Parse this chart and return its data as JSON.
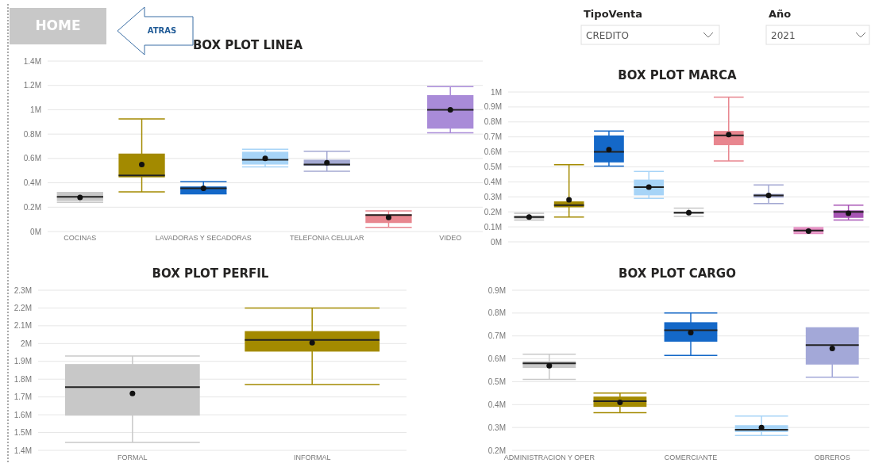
{
  "chart_data": [
    {
      "type": "box",
      "title": "BOX PLOT LINEA",
      "categories": [
        "COCINAS",
        null,
        "LAVADORAS Y SECADORAS",
        null,
        "TELEFONIA CELULAR",
        null,
        "VIDEO"
      ],
      "colors": [
        "#c8c8c8",
        "#a38a00",
        "#1468c8",
        "#a7d4f7",
        "#a3a8d2",
        "#e8868f",
        "#a98bd8"
      ],
      "boxes": [
        {
          "low": 0.24,
          "q1": 0.25,
          "median": 0.285,
          "q3": 0.32,
          "high": 0.32,
          "mean": 0.28
        },
        {
          "low": 0.325,
          "q1": 0.445,
          "median": 0.46,
          "q3": 0.64,
          "high": 0.925,
          "mean": 0.55
        },
        {
          "low": 0.31,
          "q1": 0.31,
          "median": 0.355,
          "q3": 0.37,
          "high": 0.41,
          "mean": 0.355
        },
        {
          "low": 0.53,
          "q1": 0.55,
          "median": 0.59,
          "q3": 0.655,
          "high": 0.675,
          "mean": 0.6
        },
        {
          "low": 0.495,
          "q1": 0.54,
          "median": 0.55,
          "q3": 0.59,
          "high": 0.66,
          "mean": 0.565
        },
        {
          "low": 0.035,
          "q1": 0.07,
          "median": 0.135,
          "q3": 0.14,
          "high": 0.17,
          "mean": 0.115
        },
        {
          "low": 0.81,
          "q1": 0.845,
          "median": 1.0,
          "q3": 1.12,
          "high": 1.19,
          "mean": 1.0
        }
      ],
      "ylim": [
        0,
        1.4
      ],
      "yticks": [
        {
          "value": 0,
          "label": "0M"
        },
        {
          "value": 0.2,
          "label": "0.2M"
        },
        {
          "value": 0.4,
          "label": "0.4M"
        },
        {
          "value": 0.6,
          "label": "0.6M"
        },
        {
          "value": 0.8,
          "label": "0.8M"
        },
        {
          "value": 1,
          "label": "1M"
        },
        {
          "value": 1.2,
          "label": "1.2M"
        },
        {
          "value": 1.4,
          "label": "1.4M"
        }
      ],
      "grid": "y"
    },
    {
      "type": "box",
      "title": "BOX PLOT MARCA",
      "categories": [
        null,
        null,
        null,
        null,
        null,
        null,
        null,
        null,
        null
      ],
      "colors": [
        "#bdbdbd",
        "#a38a00",
        "#1468c8",
        "#a7d4f7",
        "#c8c8c8",
        "#e8868f",
        "#a3a8d2",
        "#e48ac0",
        "#a855b5"
      ],
      "boxes": [
        {
          "low": 0.145,
          "q1": 0.155,
          "median": 0.165,
          "q3": 0.175,
          "high": 0.19,
          "mean": 0.165
        },
        {
          "low": 0.165,
          "q1": 0.23,
          "median": 0.245,
          "q3": 0.27,
          "high": 0.515,
          "mean": 0.28
        },
        {
          "low": 0.505,
          "q1": 0.53,
          "median": 0.6,
          "q3": 0.71,
          "high": 0.74,
          "mean": 0.615
        },
        {
          "low": 0.29,
          "q1": 0.31,
          "median": 0.365,
          "q3": 0.415,
          "high": 0.47,
          "mean": 0.365
        },
        {
          "low": 0.17,
          "q1": 0.185,
          "median": 0.195,
          "q3": 0.2,
          "high": 0.225,
          "mean": 0.195
        },
        {
          "low": 0.54,
          "q1": 0.645,
          "median": 0.71,
          "q3": 0.74,
          "high": 0.965,
          "mean": 0.715
        },
        {
          "low": 0.255,
          "q1": 0.295,
          "median": 0.31,
          "q3": 0.32,
          "high": 0.38,
          "mean": 0.31
        },
        {
          "low": 0.055,
          "q1": 0.06,
          "median": 0.075,
          "q3": 0.09,
          "high": 0.095,
          "mean": 0.072
        },
        {
          "low": 0.145,
          "q1": 0.16,
          "median": 0.2,
          "q3": 0.21,
          "high": 0.245,
          "mean": 0.19
        }
      ],
      "ylim": [
        0,
        1
      ],
      "yticks": [
        {
          "value": 0,
          "label": "0M"
        },
        {
          "value": 0.1,
          "label": "0.1M"
        },
        {
          "value": 0.2,
          "label": "0.2M"
        },
        {
          "value": 0.3,
          "label": "0.3M"
        },
        {
          "value": 0.4,
          "label": "0.4M"
        },
        {
          "value": 0.5,
          "label": "0.5M"
        },
        {
          "value": 0.6,
          "label": "0.6M"
        },
        {
          "value": 0.7,
          "label": "0.7M"
        },
        {
          "value": 0.8,
          "label": "0.8M"
        },
        {
          "value": 0.9,
          "label": "0.9M"
        },
        {
          "value": 1,
          "label": "1M"
        }
      ],
      "grid": "y"
    },
    {
      "type": "box",
      "title": "BOX PLOT PERFIL",
      "categories": [
        "FORMAL",
        "INFORMAL"
      ],
      "colors": [
        "#c8c8c8",
        "#a38a00"
      ],
      "boxes": [
        {
          "low": 1.445,
          "q1": 1.595,
          "median": 1.755,
          "q3": 1.885,
          "high": 1.93,
          "mean": 1.72
        },
        {
          "low": 1.77,
          "q1": 1.955,
          "median": 2.02,
          "q3": 2.07,
          "high": 2.2,
          "mean": 2.005
        }
      ],
      "ylim": [
        1.4,
        2.3
      ],
      "yticks": [
        {
          "value": 1.4,
          "label": "1.4M"
        },
        {
          "value": 1.5,
          "label": "1.5M"
        },
        {
          "value": 1.6,
          "label": "1.6M"
        },
        {
          "value": 1.7,
          "label": "1.7M"
        },
        {
          "value": 1.8,
          "label": "1.8M"
        },
        {
          "value": 1.9,
          "label": "1.9M"
        },
        {
          "value": 2,
          "label": "2M"
        },
        {
          "value": 2.1,
          "label": "2.1M"
        },
        {
          "value": 2.2,
          "label": "2.2M"
        },
        {
          "value": 2.3,
          "label": "2.3M"
        }
      ],
      "grid": "y"
    },
    {
      "type": "box",
      "title": "BOX PLOT CARGO",
      "categories": [
        "ADMINISTRACION Y OPER",
        null,
        "COMERCIANTE",
        null,
        "OBREROS"
      ],
      "colors": [
        "#c8c8c8",
        "#a38a00",
        "#1468c8",
        "#a7d4f7",
        "#a3a8d8"
      ],
      "boxes": [
        {
          "low": 0.51,
          "q1": 0.56,
          "median": 0.58,
          "q3": 0.59,
          "high": 0.62,
          "mean": 0.57
        },
        {
          "low": 0.365,
          "q1": 0.39,
          "median": 0.415,
          "q3": 0.435,
          "high": 0.45,
          "mean": 0.41
        },
        {
          "low": 0.615,
          "q1": 0.675,
          "median": 0.725,
          "q3": 0.76,
          "high": 0.8,
          "mean": 0.715
        },
        {
          "low": 0.265,
          "q1": 0.28,
          "median": 0.29,
          "q3": 0.31,
          "high": 0.35,
          "mean": 0.3
        },
        {
          "low": 0.52,
          "q1": 0.575,
          "median": 0.66,
          "q3": 0.735,
          "high": 0.735,
          "mean": 0.645
        }
      ],
      "ylim": [
        0.2,
        0.9
      ],
      "yticks": [
        {
          "value": 0.2,
          "label": "0.2M"
        },
        {
          "value": 0.3,
          "label": "0.3M"
        },
        {
          "value": 0.4,
          "label": "0.4M"
        },
        {
          "value": 0.5,
          "label": "0.5M"
        },
        {
          "value": 0.6,
          "label": "0.6M"
        },
        {
          "value": 0.7,
          "label": "0.7M"
        },
        {
          "value": 0.8,
          "label": "0.8M"
        },
        {
          "value": 0.9,
          "label": "0.9M"
        }
      ],
      "grid": "y"
    },
    {
      "type": "other",
      "annotations": [
        "HOME",
        "ATRAS",
        "TipoVenta",
        "CREDITO",
        "Año",
        "2021"
      ]
    }
  ]
}
